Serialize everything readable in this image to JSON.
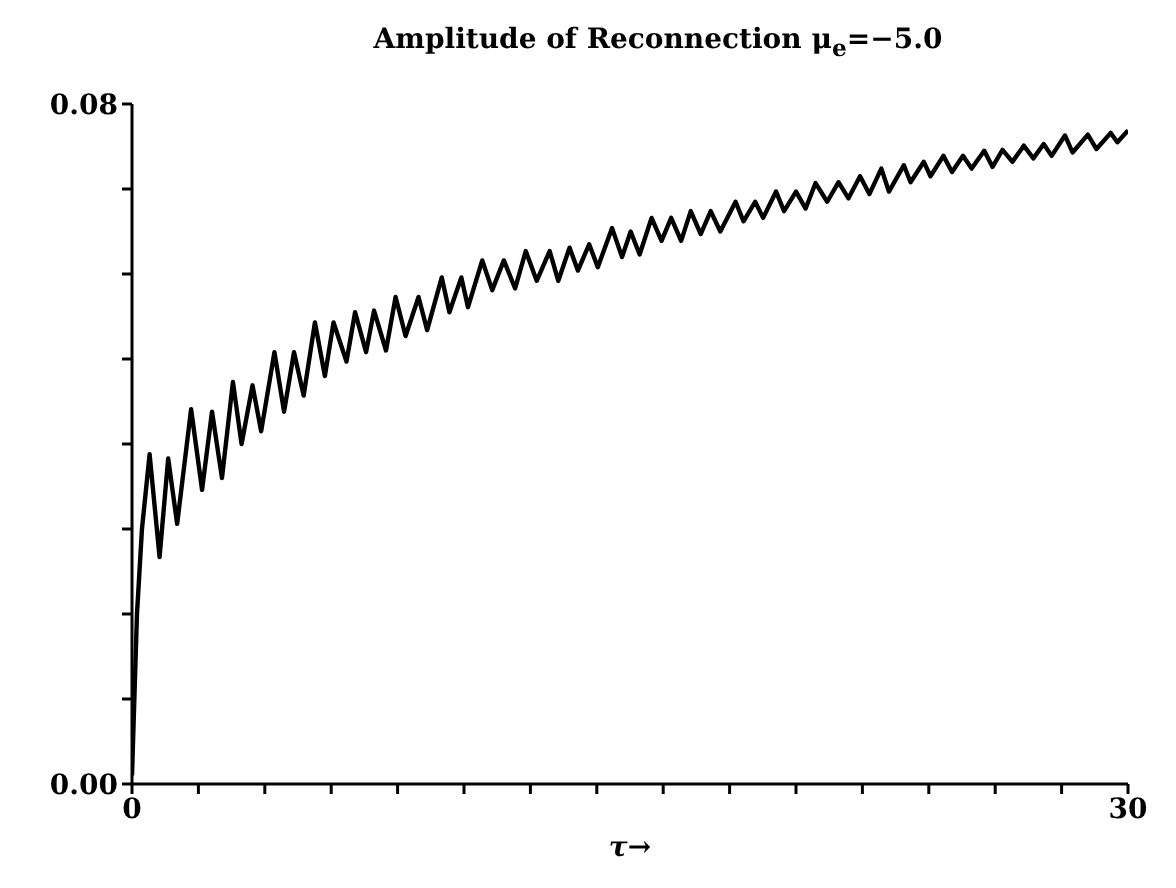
{
  "chart_data": {
    "type": "line",
    "title": "Amplitude of Reconnection    μ$_{e}$=−5.0",
    "xlabel": "τ→",
    "x": [
      0,
      0.15,
      0.3,
      0.53,
      0.83,
      1.09,
      1.36,
      1.78,
      2.11,
      2.41,
      2.71,
      3.04,
      3.3,
      3.63,
      3.89,
      4.29,
      4.58,
      4.88,
      5.17,
      5.51,
      5.81,
      6.07,
      6.46,
      6.72,
      7.05,
      7.29,
      7.65,
      7.94,
      8.24,
      8.63,
      8.89,
      9.33,
      9.56,
      9.92,
      10.12,
      10.55,
      10.85,
      11.2,
      11.54,
      11.86,
      12.19,
      12.58,
      12.84,
      13.18,
      13.43,
      13.77,
      14.03,
      14.46,
      14.76,
      15.02,
      15.29,
      15.65,
      15.95,
      16.24,
      16.54,
      16.83,
      17.13,
      17.43,
      17.72,
      18.18,
      18.42,
      18.77,
      19.01,
      19.4,
      19.64,
      20.0,
      20.29,
      20.59,
      20.94,
      21.28,
      21.58,
      21.93,
      22.21,
      22.57,
      22.8,
      23.25,
      23.45,
      23.85,
      24.05,
      24.44,
      24.7,
      25.03,
      25.29,
      25.67,
      25.92,
      26.22,
      26.52,
      26.86,
      27.15,
      27.46,
      27.7,
      28.1,
      28.33,
      28.79,
      29.05,
      29.48,
      29.68,
      30.0
    ],
    "series": [
      {
        "color": "#000000",
        "values": [
          0.001,
          0.02,
          0.03,
          0.0388,
          0.0267,
          0.0383,
          0.0306,
          0.0441,
          0.0346,
          0.0438,
          0.036,
          0.0473,
          0.04,
          0.0469,
          0.0415,
          0.0508,
          0.0438,
          0.0508,
          0.0457,
          0.0543,
          0.048,
          0.0543,
          0.0497,
          0.0555,
          0.0508,
          0.0557,
          0.051,
          0.0573,
          0.0527,
          0.0573,
          0.0534,
          0.0596,
          0.0555,
          0.0596,
          0.0561,
          0.0616,
          0.0581,
          0.0616,
          0.0583,
          0.0627,
          0.0592,
          0.0627,
          0.0592,
          0.0631,
          0.0604,
          0.0635,
          0.0608,
          0.0654,
          0.062,
          0.065,
          0.0623,
          0.0666,
          0.0639,
          0.0666,
          0.0639,
          0.0674,
          0.0647,
          0.0674,
          0.065,
          0.0685,
          0.0662,
          0.0685,
          0.0666,
          0.0697,
          0.0674,
          0.0697,
          0.0677,
          0.0707,
          0.0685,
          0.0708,
          0.0689,
          0.0715,
          0.0694,
          0.0724,
          0.0697,
          0.0728,
          0.0708,
          0.0732,
          0.0715,
          0.0739,
          0.072,
          0.0739,
          0.0724,
          0.0745,
          0.0726,
          0.0746,
          0.0732,
          0.0751,
          0.0736,
          0.0753,
          0.0739,
          0.0763,
          0.0743,
          0.0764,
          0.0747,
          0.0766,
          0.0755,
          0.0769
        ]
      }
    ],
    "xlim": [
      0,
      30
    ],
    "xticks": [
      0,
      {
        "value": 2,
        "label": null
      },
      {
        "value": 4,
        "label": null
      },
      {
        "value": 6,
        "label": null
      },
      {
        "value": 8,
        "label": null
      },
      {
        "value": 10,
        "label": null
      },
      {
        "value": 12,
        "label": null
      },
      {
        "value": 14,
        "label": null
      },
      {
        "value": 16,
        "label": null
      },
      {
        "value": 18,
        "label": null
      },
      {
        "value": 20,
        "label": null
      },
      {
        "value": 22,
        "label": null
      },
      {
        "value": 24,
        "label": null
      },
      {
        "value": 26,
        "label": null
      },
      {
        "value": 28,
        "label": null
      },
      30
    ],
    "ylim": [
      0,
      0.08
    ],
    "yticks": [
      {
        "value": 0,
        "label": "0.00"
      },
      {
        "value": 0.01,
        "label": null
      },
      {
        "value": 0.02,
        "label": null
      },
      {
        "value": 0.03,
        "label": null
      },
      {
        "value": 0.04,
        "label": null
      },
      {
        "value": 0.05,
        "label": null
      },
      {
        "value": 0.06,
        "label": null
      },
      {
        "value": 0.07,
        "label": null
      },
      {
        "value": 0.08,
        "label": "0.08"
      }
    ],
    "marker": "none",
    "line_style": "solid",
    "grid": false,
    "legend": false
  }
}
